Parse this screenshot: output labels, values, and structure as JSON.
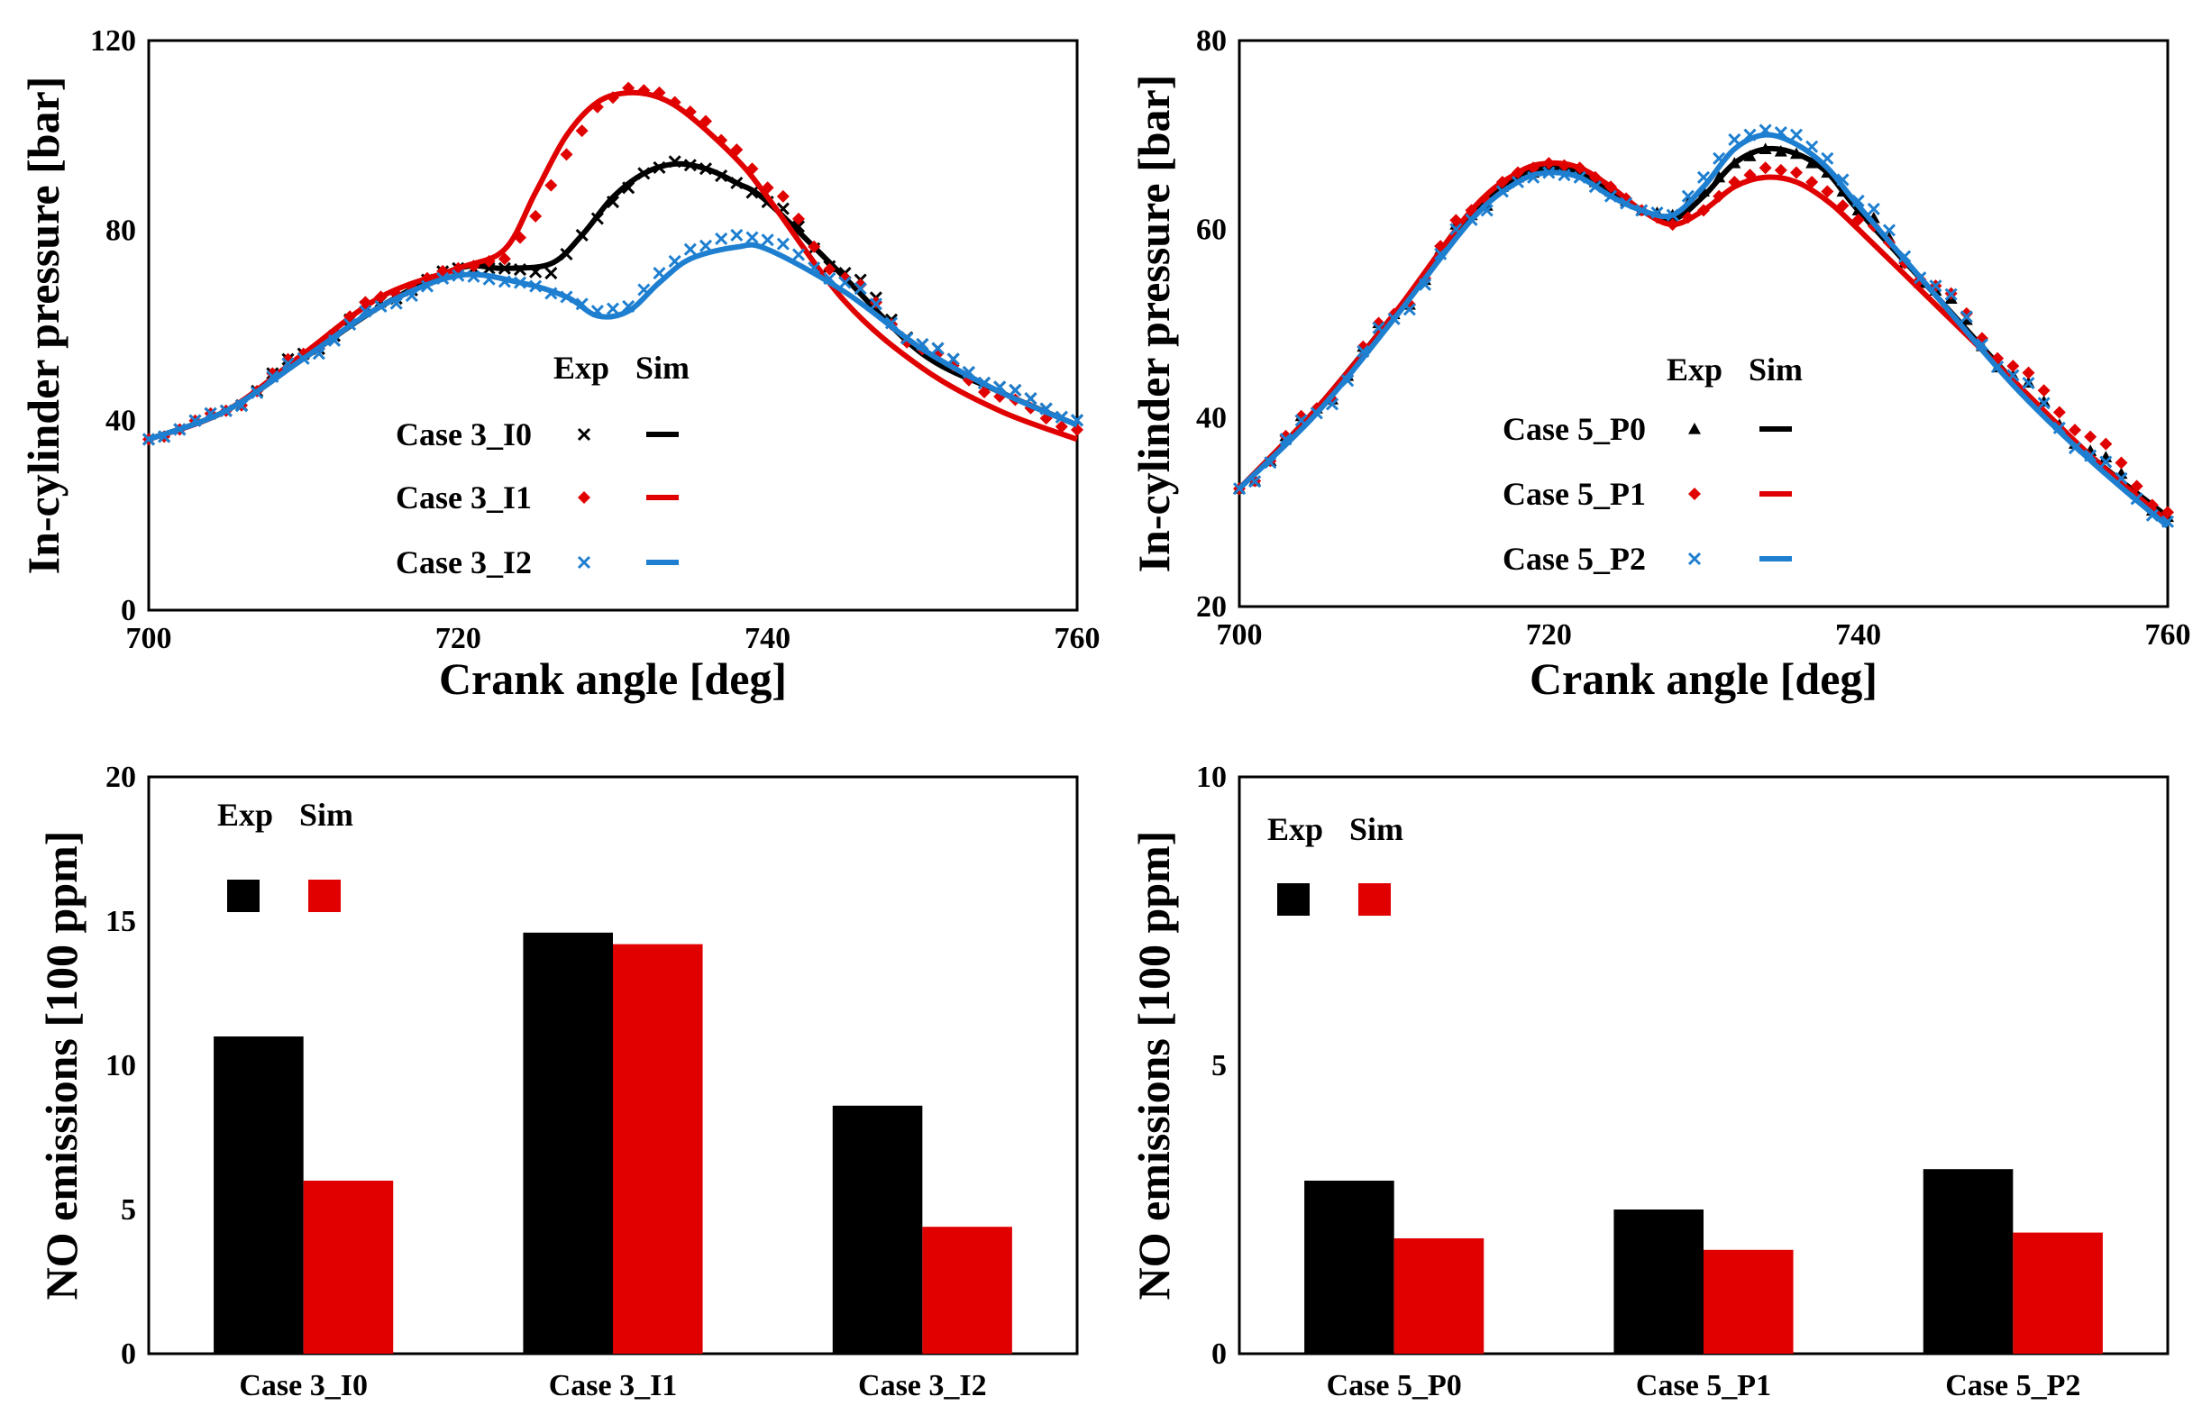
{
  "chart_data": [
    {
      "id": "p1",
      "type": "line",
      "xlabel": "Crank angle [deg]",
      "ylabel": "In-cylinder pressure [bar]",
      "xlim": [
        700,
        760
      ],
      "ylim": [
        0,
        120
      ],
      "xticks": [
        700,
        720,
        740,
        760
      ],
      "yticks": [
        0,
        40,
        80,
        120
      ],
      "legend_headers": [
        "Exp",
        "Sim"
      ],
      "series": [
        {
          "name": "Case 3_I0",
          "color": "#000000",
          "marker": "x",
          "marker_glyph": "✕",
          "sim": [
            [
              700,
              36
            ],
            [
              705,
              42
            ],
            [
              710,
              53
            ],
            [
              715,
              64
            ],
            [
              720,
              72
            ],
            [
              723,
              72
            ],
            [
              726,
              73
            ],
            [
              728,
              79
            ],
            [
              730,
              87
            ],
            [
              732,
              92
            ],
            [
              734,
              94
            ],
            [
              736,
              93
            ],
            [
              738,
              90
            ],
            [
              740,
              86
            ],
            [
              745,
              70
            ],
            [
              750,
              54
            ],
            [
              755,
              46
            ],
            [
              760,
              39
            ]
          ],
          "exp": [
            [
              700,
              36
            ],
            [
              705,
              42
            ],
            [
              710,
              54
            ],
            [
              715,
              65
            ],
            [
              720,
              72
            ],
            [
              723,
              72
            ],
            [
              726,
              71
            ],
            [
              728,
              79
            ],
            [
              730,
              86
            ],
            [
              732,
              92
            ],
            [
              734,
              94.5
            ],
            [
              736,
              93
            ],
            [
              738,
              90
            ],
            [
              740,
              86
            ],
            [
              745,
              71
            ],
            [
              750,
              56
            ],
            [
              755,
              47
            ],
            [
              760,
              40
            ]
          ]
        },
        {
          "name": "Case 3_I1",
          "color": "#e00000",
          "marker": "diamond",
          "marker_glyph": "◆",
          "sim": [
            [
              700,
              36
            ],
            [
              705,
              42
            ],
            [
              710,
              54
            ],
            [
              715,
              66
            ],
            [
              720,
              72
            ],
            [
              723,
              76
            ],
            [
              725,
              88
            ],
            [
              727,
              100
            ],
            [
              729,
              107
            ],
            [
              731,
              109
            ],
            [
              733,
              108
            ],
            [
              735,
              104
            ],
            [
              738,
              95
            ],
            [
              740,
              87
            ],
            [
              745,
              65
            ],
            [
              750,
              51
            ],
            [
              755,
              42
            ],
            [
              760,
              36
            ]
          ],
          "exp": [
            [
              700,
              36
            ],
            [
              705,
              42
            ],
            [
              710,
              54
            ],
            [
              715,
              66
            ],
            [
              720,
              72
            ],
            [
              723,
              74
            ],
            [
              725,
              83
            ],
            [
              727,
              96
            ],
            [
              729,
              106
            ],
            [
              731,
              110
            ],
            [
              733,
              109
            ],
            [
              735,
              105
            ],
            [
              738,
              97
            ],
            [
              740,
              89
            ],
            [
              745,
              70
            ],
            [
              750,
              55
            ],
            [
              755,
              45
            ],
            [
              760,
              38
            ]
          ]
        },
        {
          "name": "Case 3_I2",
          "color": "#1e7fd0",
          "marker": "x",
          "marker_glyph": "✕",
          "sim": [
            [
              700,
              36
            ],
            [
              705,
              42
            ],
            [
              710,
              53
            ],
            [
              715,
              64
            ],
            [
              720,
              70.5
            ],
            [
              724,
              69
            ],
            [
              727,
              66
            ],
            [
              729,
              62
            ],
            [
              731,
              63
            ],
            [
              733,
              69
            ],
            [
              735,
              74
            ],
            [
              738,
              76.5
            ],
            [
              740,
              76
            ],
            [
              745,
              67
            ],
            [
              750,
              55
            ],
            [
              755,
              46
            ],
            [
              760,
              39
            ]
          ],
          "exp": [
            [
              700,
              36
            ],
            [
              705,
              42
            ],
            [
              710,
              53
            ],
            [
              715,
              64
            ],
            [
              720,
              70.5
            ],
            [
              724,
              69
            ],
            [
              727,
              66
            ],
            [
              729,
              63
            ],
            [
              731,
              64
            ],
            [
              733,
              71
            ],
            [
              735,
              76
            ],
            [
              738,
              79
            ],
            [
              740,
              78
            ],
            [
              745,
              69
            ],
            [
              750,
              56
            ],
            [
              755,
              47
            ],
            [
              760,
              40
            ]
          ]
        }
      ]
    },
    {
      "id": "p2",
      "type": "line",
      "xlabel": "Crank angle [deg]",
      "ylabel": "In-cylinder pressure [bar]",
      "xlim": [
        700,
        760
      ],
      "ylim": [
        20,
        80
      ],
      "xticks": [
        700,
        720,
        740,
        760
      ],
      "yticks": [
        20,
        40,
        60,
        80
      ],
      "legend_headers": [
        "Exp",
        "Sim"
      ],
      "series": [
        {
          "name": "Case 5_P0",
          "color": "#000000",
          "marker": "triangle",
          "marker_glyph": "▲",
          "sim": [
            [
              700,
              32.5
            ],
            [
              705,
              41
            ],
            [
              710,
              51
            ],
            [
              715,
              61.5
            ],
            [
              718,
              65.5
            ],
            [
              720,
              66.5
            ],
            [
              722,
              66
            ],
            [
              724,
              64
            ],
            [
              726,
              62
            ],
            [
              728,
              61
            ],
            [
              730,
              63.5
            ],
            [
              732,
              67
            ],
            [
              734,
              68.5
            ],
            [
              736,
              68
            ],
            [
              738,
              66
            ],
            [
              740,
              62
            ],
            [
              745,
              53
            ],
            [
              750,
              44
            ],
            [
              755,
              36
            ],
            [
              760,
              29.5
            ]
          ],
          "exp": [
            [
              700,
              32.5
            ],
            [
              705,
              41
            ],
            [
              710,
              51
            ],
            [
              715,
              61.5
            ],
            [
              718,
              65.5
            ],
            [
              720,
              66.5
            ],
            [
              722,
              66
            ],
            [
              724,
              64
            ],
            [
              726,
              62
            ],
            [
              728,
              61.5
            ],
            [
              730,
              64
            ],
            [
              732,
              67
            ],
            [
              734,
              68.5
            ],
            [
              736,
              68
            ],
            [
              738,
              66
            ],
            [
              740,
              62
            ],
            [
              745,
              53.5
            ],
            [
              750,
              44.5
            ],
            [
              755,
              36.5
            ],
            [
              760,
              29.5
            ]
          ]
        },
        {
          "name": "Case 5_P1",
          "color": "#e00000",
          "marker": "diamond",
          "marker_glyph": "◆",
          "sim": [
            [
              700,
              32.5
            ],
            [
              705,
              41
            ],
            [
              710,
              51
            ],
            [
              715,
              62
            ],
            [
              718,
              66
            ],
            [
              720,
              67
            ],
            [
              722,
              66.5
            ],
            [
              724,
              64.5
            ],
            [
              726,
              62
            ],
            [
              728,
              60.5
            ],
            [
              730,
              62
            ],
            [
              732,
              64.5
            ],
            [
              734,
              65.5
            ],
            [
              736,
              65
            ],
            [
              738,
              63
            ],
            [
              740,
              60
            ],
            [
              745,
              52
            ],
            [
              750,
              44
            ],
            [
              755,
              36
            ],
            [
              760,
              29
            ]
          ],
          "exp": [
            [
              700,
              32.5
            ],
            [
              705,
              41
            ],
            [
              710,
              51
            ],
            [
              715,
              62
            ],
            [
              718,
              66
            ],
            [
              720,
              67
            ],
            [
              722,
              66.5
            ],
            [
              724,
              64.5
            ],
            [
              726,
              62
            ],
            [
              728,
              60.5
            ],
            [
              730,
              62
            ],
            [
              732,
              65
            ],
            [
              734,
              66.5
            ],
            [
              736,
              66
            ],
            [
              738,
              64
            ],
            [
              740,
              61
            ],
            [
              745,
              54
            ],
            [
              750,
              45.5
            ],
            [
              755,
              38
            ],
            [
              760,
              30
            ]
          ]
        },
        {
          "name": "Case 5_P2",
          "color": "#1e7fd0",
          "marker": "x",
          "marker_glyph": "✕",
          "sim": [
            [
              700,
              32.5
            ],
            [
              705,
              40.5
            ],
            [
              710,
              50.5
            ],
            [
              715,
              61
            ],
            [
              718,
              65
            ],
            [
              720,
              66
            ],
            [
              722,
              65.5
            ],
            [
              724,
              63.5
            ],
            [
              726,
              62
            ],
            [
              728,
              61.5
            ],
            [
              730,
              64.5
            ],
            [
              732,
              68.5
            ],
            [
              734,
              70
            ],
            [
              736,
              69
            ],
            [
              738,
              66.5
            ],
            [
              740,
              62.5
            ],
            [
              745,
              53
            ],
            [
              750,
              43.5
            ],
            [
              755,
              35.5
            ],
            [
              760,
              28.5
            ]
          ],
          "exp": [
            [
              700,
              32.5
            ],
            [
              705,
              40.5
            ],
            [
              710,
              50.5
            ],
            [
              715,
              61
            ],
            [
              718,
              65
            ],
            [
              720,
              66
            ],
            [
              722,
              65.5
            ],
            [
              724,
              63.5
            ],
            [
              726,
              62
            ],
            [
              728,
              61.5
            ],
            [
              730,
              65.5
            ],
            [
              732,
              69.5
            ],
            [
              734,
              70.5
            ],
            [
              736,
              70
            ],
            [
              738,
              67.5
            ],
            [
              740,
              63
            ],
            [
              745,
              54
            ],
            [
              750,
              44.5
            ],
            [
              755,
              36
            ],
            [
              760,
              29
            ]
          ]
        }
      ]
    },
    {
      "id": "p3",
      "type": "bar",
      "ylabel": "NO emissions [100 ppm]",
      "ylim": [
        0,
        20
      ],
      "yticks": [
        0,
        5,
        10,
        15,
        20
      ],
      "categories": [
        "Case 3_I0",
        "Case 3_I1",
        "Case 3_I2"
      ],
      "legend_headers": [
        "Exp",
        "Sim"
      ],
      "series": [
        {
          "name": "Exp",
          "color": "#000000",
          "values": [
            11.0,
            14.6,
            8.6
          ]
        },
        {
          "name": "Sim",
          "color": "#e00000",
          "values": [
            6.0,
            14.2,
            4.4
          ]
        }
      ]
    },
    {
      "id": "p4",
      "type": "bar",
      "ylabel": "NO emissions [100 ppm]",
      "ylim": [
        0,
        10
      ],
      "yticks": [
        0,
        5,
        10
      ],
      "categories": [
        "Case 5_P0",
        "Case 5_P1",
        "Case 5_P2"
      ],
      "legend_headers": [
        "Exp",
        "Sim"
      ],
      "series": [
        {
          "name": "Exp",
          "color": "#000000",
          "values": [
            3.0,
            2.5,
            3.2
          ]
        },
        {
          "name": "Sim",
          "color": "#e00000",
          "values": [
            2.0,
            1.8,
            2.1
          ]
        }
      ]
    }
  ]
}
